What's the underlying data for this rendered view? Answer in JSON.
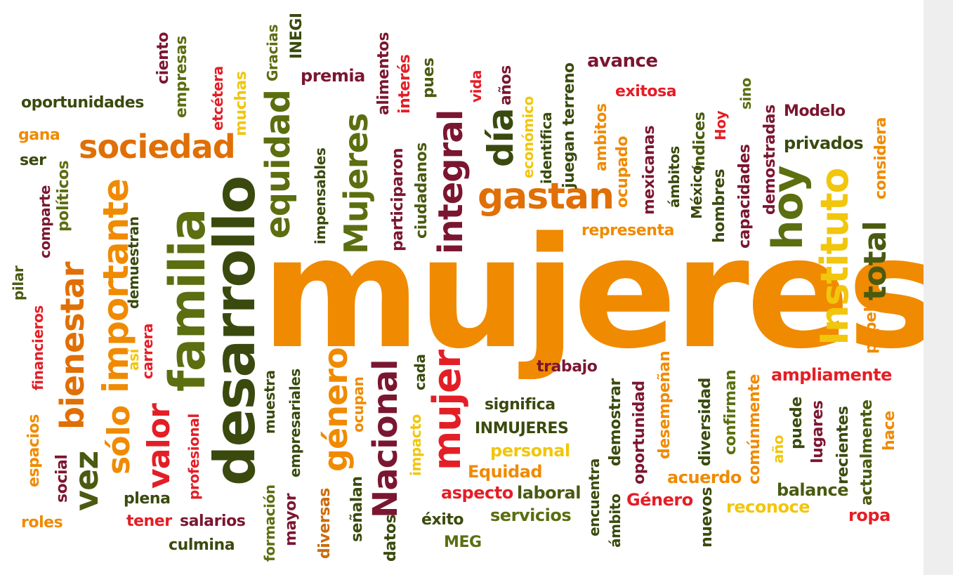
{
  "words": {
    "mujeres": "mujeres",
    "desarrollo": "desarrollo",
    "familia": "familia",
    "importante": "importante",
    "bienestar": "bienestar",
    "sociedad": "sociedad",
    "equidad": "equidad",
    "Mujeres": "Mujeres",
    "integral": "integral",
    "dia": "día",
    "gastan": "gastan",
    "hoy": "hoy",
    "Instituto": "Instituto",
    "total": "total",
    "Nacional": "Nacional",
    "mujer": "mujer",
    "genero": "género",
    "valor": "valor",
    "solo": "sólo",
    "vez": "vez",
    "oportunidades": "oportunidades",
    "ciento": "ciento",
    "empresas": "empresas",
    "etcetera": "etcétera",
    "muchas": "muchas",
    "Gracias": "Gracias",
    "INEGI": "INEGI",
    "premia": "premia",
    "alimentos": "alimentos",
    "interes": "interés",
    "pues": "pues",
    "vida": "vida",
    "anos": "años",
    "identifica": "identifica",
    "juegan_terreno": "juegan terreno",
    "avance": "avance",
    "exitosa": "exitosa",
    "indices": "índices",
    "sino": "sino",
    "Modelo": "Modelo",
    "Hoy": "Hoy",
    "demostradas": "demostradas",
    "privados": "privados",
    "considera": "considera",
    "gana": "gana",
    "ser": "ser",
    "politicos": "políticos",
    "comparte": "comparte",
    "financieros": "financieros",
    "pilar": "pilar",
    "demuestran": "demuestran",
    "carrera": "carrera",
    "asi": "así",
    "espacios": "espacios",
    "social": "social",
    "roles": "roles",
    "impensables": "impensables",
    "participaron": "participaron",
    "ciudadanos": "ciudadanos",
    "economico": "económico",
    "ambitos": "ambitos",
    "ocupado": "ocupado",
    "mexicanas": "mexicanas",
    "ambitos2": "ámbitos",
    "Mexico": "México",
    "hombres": "hombres",
    "capacidades": "capacidades",
    "representa": "representa",
    "papel": "papel",
    "trabajo": "trabajo",
    "ampliamente": "ampliamente",
    "significa": "significa",
    "INMUJERES": "INMUJERES",
    "personal": "personal",
    "Equidad": "Equidad",
    "aspecto": "aspecto",
    "laboral": "laboral",
    "exito": "éxito",
    "servicios": "servicios",
    "MEG": "MEG",
    "Genero": "Género",
    "acuerdo": "acuerdo",
    "reconoce": "reconoce",
    "balance": "balance",
    "ropa": "ropa",
    "desempenan": "desempeñan",
    "oportunidad": "oportunidad",
    "demostrar": "demostrar",
    "diversidad": "diversidad",
    "confirman": "confirman",
    "comunmente": "comúnmente",
    "ano": "año",
    "puede": "puede",
    "lugares": "lugares",
    "recientes": "recientes",
    "actualmente": "actualmente",
    "hace": "hace",
    "encuentra": "encuentra",
    "ambito": "ámbito",
    "nuevos": "nuevos",
    "cada": "cada",
    "impacto": "impacto",
    "datos": "datos",
    "ocupan": "ocupan",
    "senalan": "señalan",
    "diversas": "diversas",
    "mayor": "mayor",
    "empresariales": "empresariales",
    "muestra": "muestra",
    "formacion": "formación",
    "profesional": "profesional",
    "plena": "plena",
    "tener": "tener",
    "salarios": "salarios",
    "culmina": "culmina"
  }
}
